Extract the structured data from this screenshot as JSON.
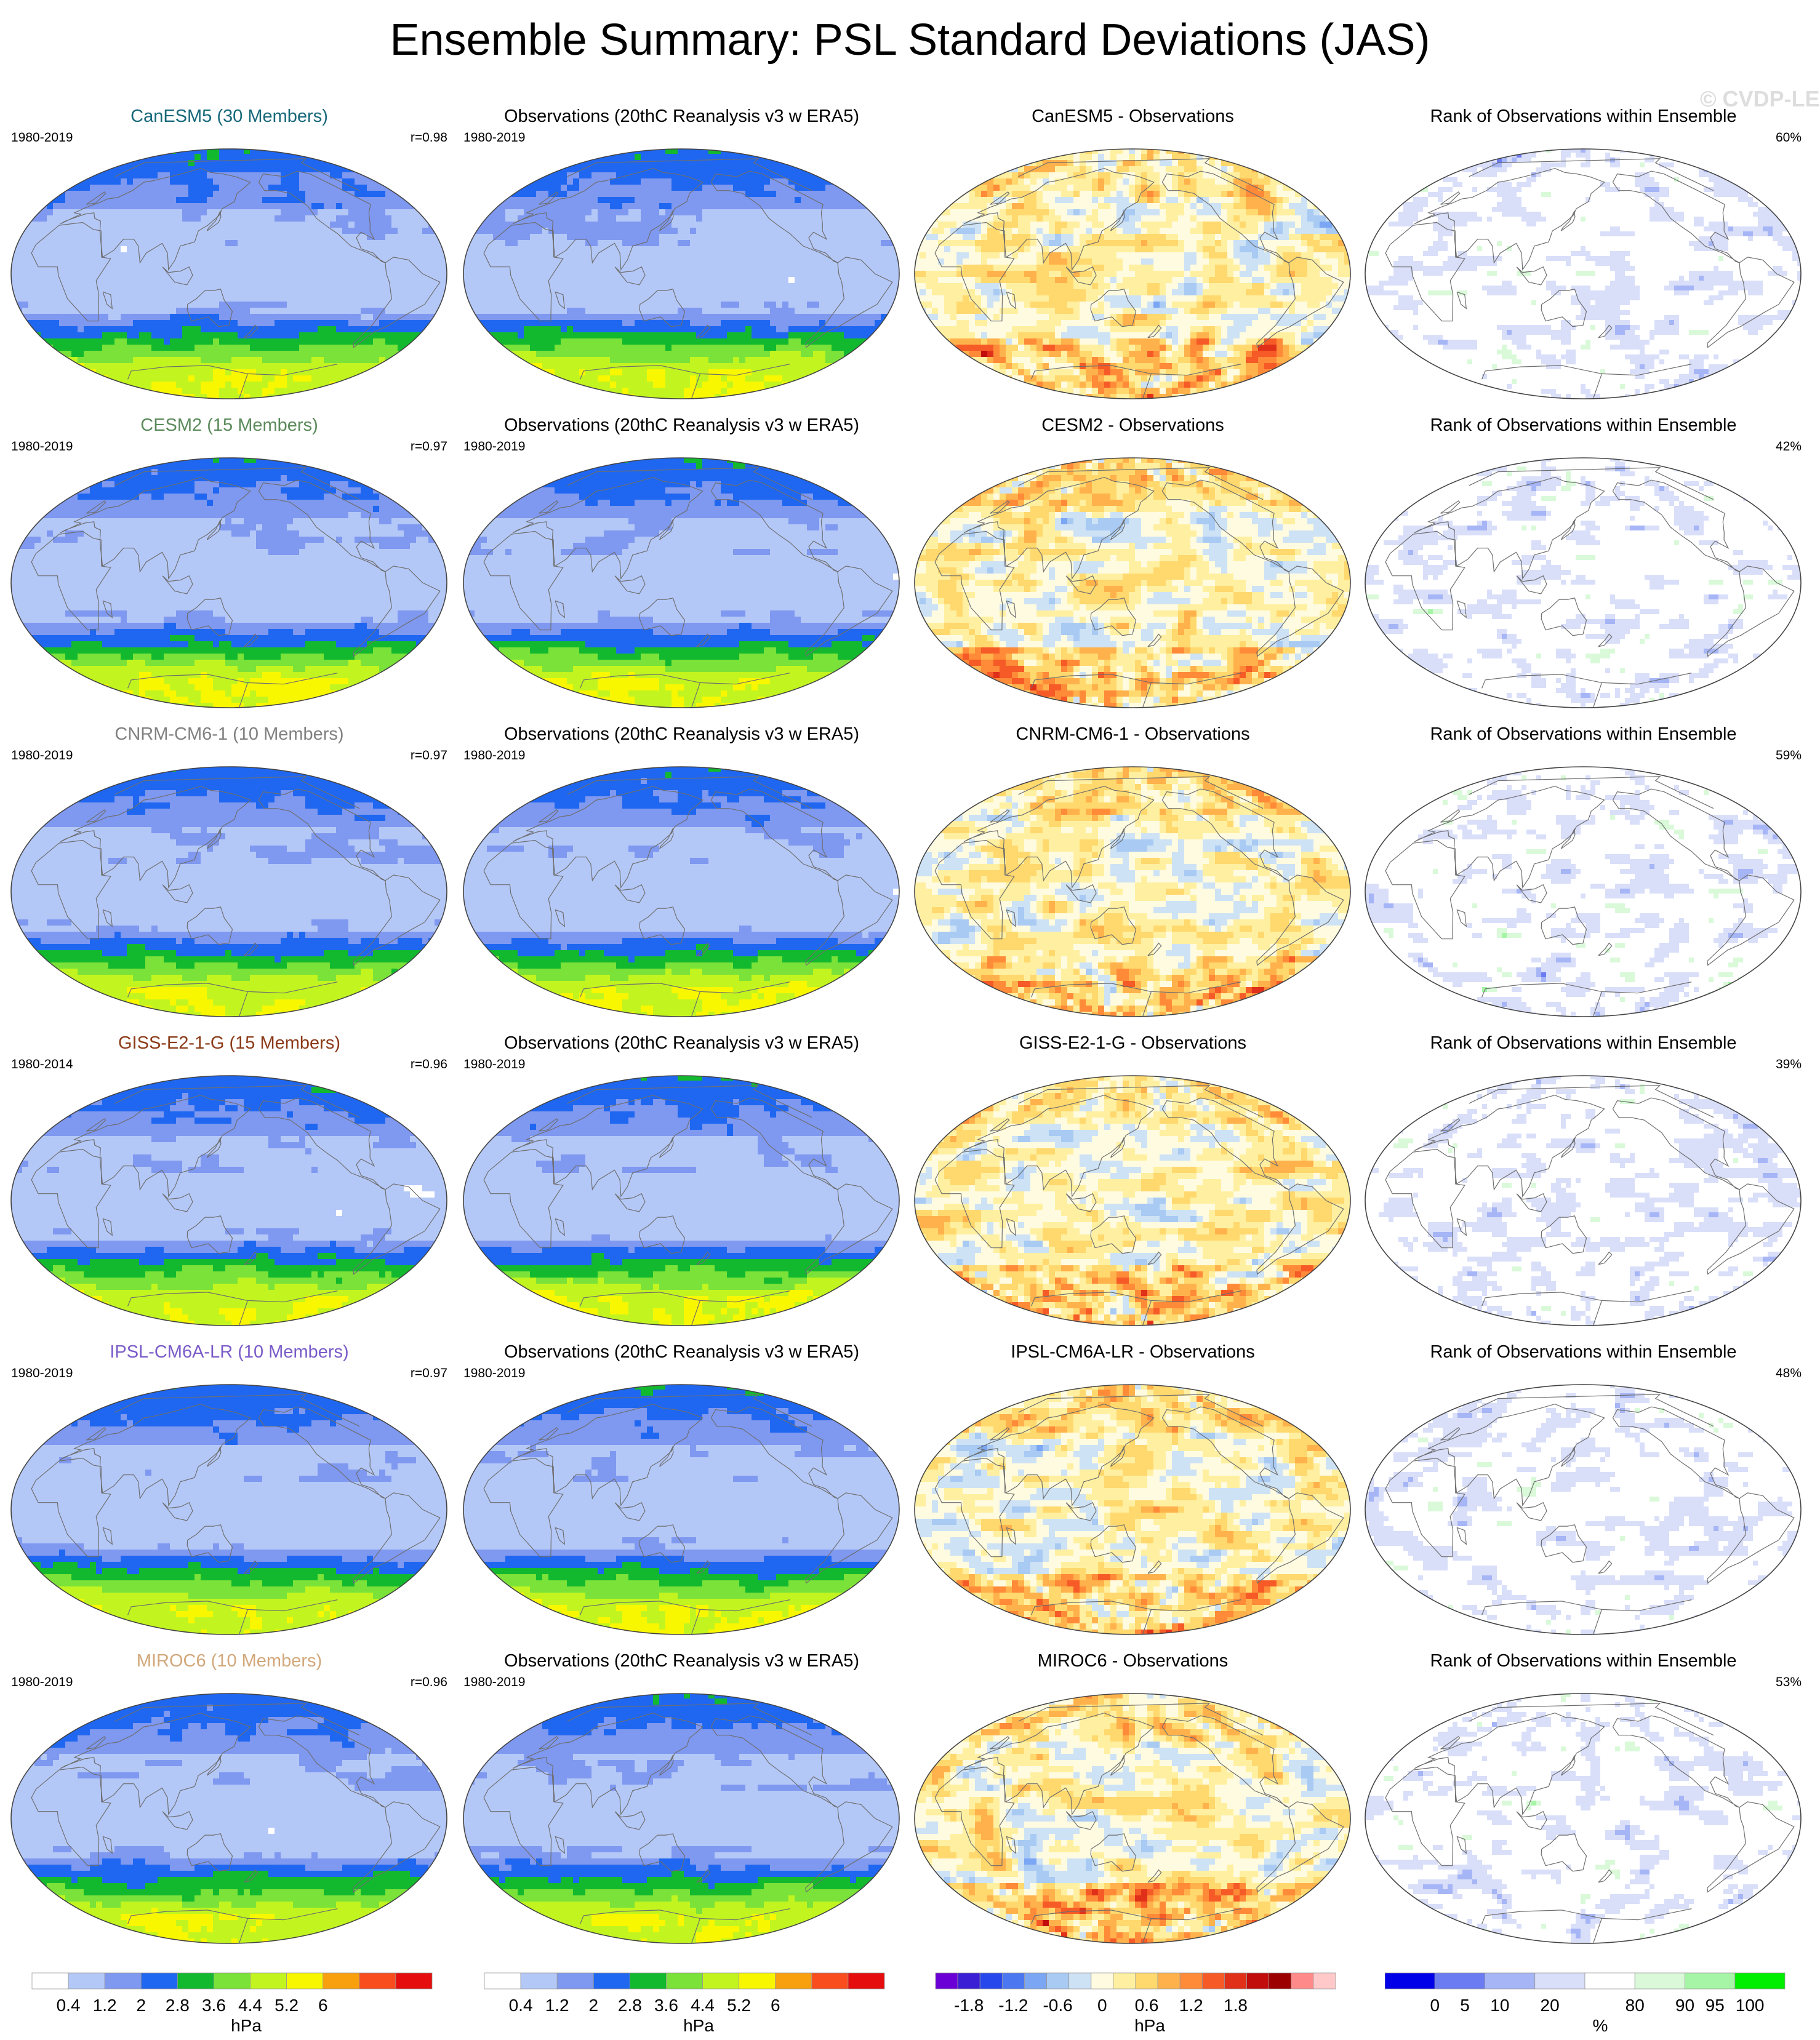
{
  "title": "Ensemble Summary: PSL Standard Deviations (JAS)",
  "watermark": "© CVDP-LE",
  "colors": {
    "land_outline": "#6e6e6e",
    "map_border": "#444444",
    "std_scale": [
      "#ffffff",
      "#b4c8f8",
      "#7f98f0",
      "#1f67f0",
      "#12b92f",
      "#7ae238",
      "#c2f51f",
      "#f9f700",
      "#f9a00f",
      "#f94d1d",
      "#e50d0d"
    ],
    "diff_scale": [
      "#6a00d5",
      "#3a1fd4",
      "#2647ec",
      "#4b78f0",
      "#7ba6f3",
      "#a8caf3",
      "#cde2f5",
      "#fffbe0",
      "#fff0a1",
      "#ffd86e",
      "#ffb24b",
      "#ff8a38",
      "#f65a26",
      "#e0301a",
      "#c20d0d",
      "#9c0000",
      "#ff8a8a",
      "#ffc9c9"
    ],
    "rank_scale": [
      "#0000e8",
      "#6b7bf1",
      "#a6b5f5",
      "#d9def9",
      "#ffffff",
      "#d9f9d9",
      "#a6f5a6",
      "#00ee00"
    ]
  },
  "std_colorbar": {
    "ticks": [
      "0.4",
      "1.2",
      "2",
      "2.8",
      "3.6",
      "4.4",
      "5.2",
      "6"
    ],
    "units": "hPa"
  },
  "diff_colorbar": {
    "ticks": [
      "-1.8",
      "-1.2",
      "-0.6",
      "0",
      "0.6",
      "1.2",
      "1.8"
    ],
    "units": "hPa"
  },
  "rank_colorbar": {
    "ticks": [
      "0",
      "5",
      "10",
      "20",
      "80",
      "90",
      "95",
      "100"
    ],
    "units": "%"
  },
  "rows": [
    {
      "model": "CanESM5 (30 Members)",
      "model_color": "#17687a",
      "model_period": "1980-2019",
      "r": "r=0.98",
      "obs_title": "Observations (20thC Reanalysis v3 w ERA5)",
      "obs_period": "1980-2019",
      "diff_title": "CanESM5 - Observations",
      "rank_title": "Rank of Observations within Ensemble",
      "rank_pct": "60%"
    },
    {
      "model": "CESM2 (15 Members)",
      "model_color": "#5b8a5b",
      "model_period": "1980-2019",
      "r": "r=0.97",
      "obs_title": "Observations (20thC Reanalysis v3 w ERA5)",
      "obs_period": "1980-2019",
      "diff_title": "CESM2 - Observations",
      "rank_title": "Rank of Observations within Ensemble",
      "rank_pct": "42%"
    },
    {
      "model": "CNRM-CM6-1 (10 Members)",
      "model_color": "#808080",
      "model_period": "1980-2019",
      "r": "r=0.97",
      "obs_title": "Observations (20thC Reanalysis v3 w ERA5)",
      "obs_period": "1980-2019",
      "diff_title": "CNRM-CM6-1 - Observations",
      "rank_title": "Rank of Observations within Ensemble",
      "rank_pct": "59%"
    },
    {
      "model": "GISS-E2-1-G (15 Members)",
      "model_color": "#8b3a17",
      "model_period": "1980-2014",
      "r": "r=0.96",
      "obs_title": "Observations (20thC Reanalysis v3 w ERA5)",
      "obs_period": "1980-2019",
      "diff_title": "GISS-E2-1-G - Observations",
      "rank_title": "Rank of Observations within Ensemble",
      "rank_pct": "39%"
    },
    {
      "model": "IPSL-CM6A-LR (10 Members)",
      "model_color": "#7a5bc8",
      "model_period": "1980-2019",
      "r": "r=0.97",
      "obs_title": "Observations (20thC Reanalysis v3 w ERA5)",
      "obs_period": "1980-2019",
      "diff_title": "IPSL-CM6A-LR - Observations",
      "rank_title": "Rank of Observations within Ensemble",
      "rank_pct": "48%"
    },
    {
      "model": "MIROC6 (10 Members)",
      "model_color": "#d2a77a",
      "model_period": "1980-2019",
      "r": "r=0.96",
      "obs_title": "Observations (20thC Reanalysis v3 w ERA5)",
      "obs_period": "1980-2019",
      "diff_title": "MIROC6 - Observations",
      "rank_title": "Rank of Observations within Ensemble",
      "rank_pct": "53%"
    }
  ]
}
